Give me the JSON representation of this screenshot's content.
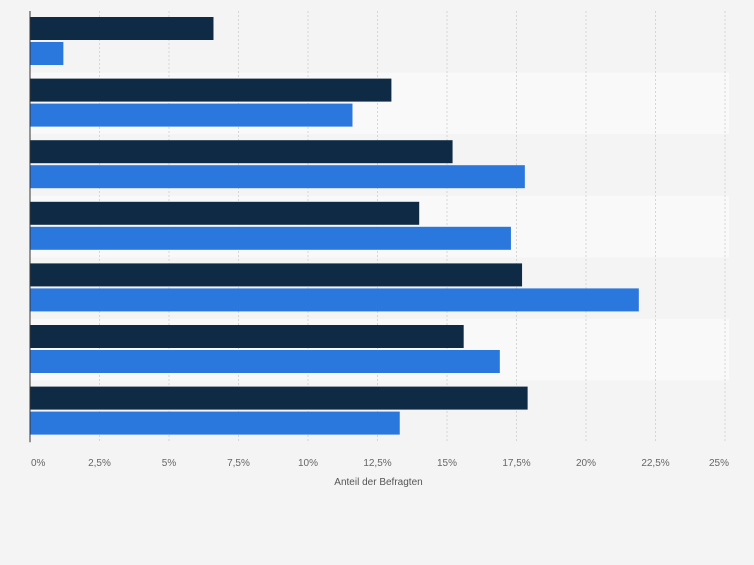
{
  "chart_data": {
    "type": "bar",
    "orientation": "horizontal",
    "categories": [
      "",
      "",
      "",
      "",
      "",
      "",
      ""
    ],
    "series": [
      {
        "color": "#0f2a44",
        "values": [
          6.6,
          13.0,
          15.2,
          14.0,
          17.7,
          15.6,
          17.9
        ]
      },
      {
        "color": "#2a77dd",
        "values": [
          1.2,
          11.6,
          17.8,
          17.3,
          21.9,
          16.9,
          13.3
        ]
      }
    ],
    "xlim": [
      0,
      25
    ],
    "xticks": [
      0,
      2.5,
      5,
      7.5,
      10,
      12.5,
      15,
      17.5,
      20,
      22.5,
      25
    ],
    "xtick_labels": [
      "0%",
      "2,5%",
      "5%",
      "7,5%",
      "10%",
      "12,5%",
      "15%",
      "17,5%",
      "20%",
      "22,5%",
      "25%"
    ],
    "xlabel": "Anteil der Befragten",
    "grid": true,
    "legend": "none"
  }
}
